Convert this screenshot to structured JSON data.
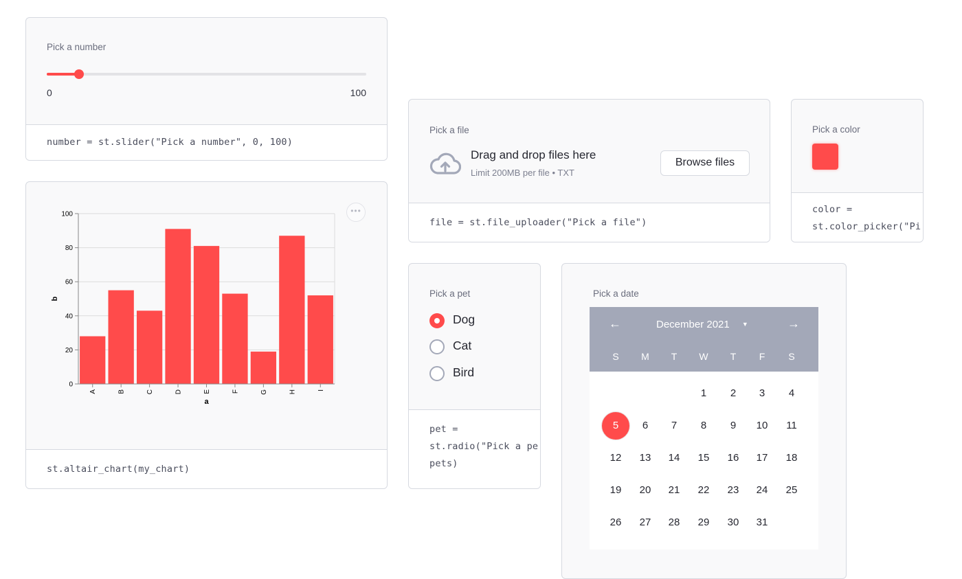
{
  "slider_card": {
    "label": "Pick a number",
    "value": 10,
    "min_label": "0",
    "max_label": "100",
    "code": "number = st.slider(\"Pick a number\", 0, 100)"
  },
  "chart_card": {
    "menu_icon": "more-horizontal-icon",
    "code": "st.altair_chart(my_chart)"
  },
  "chart_data": {
    "type": "bar",
    "categories": [
      "A",
      "B",
      "C",
      "D",
      "E",
      "F",
      "G",
      "H",
      "I"
    ],
    "values": [
      28,
      55,
      43,
      91,
      81,
      53,
      19,
      87,
      52
    ],
    "xlabel": "a",
    "ylabel": "b",
    "ylim": [
      0,
      100
    ],
    "yticks": [
      0,
      20,
      40,
      60,
      80,
      100
    ],
    "grid": true,
    "bar_color": "#ff4b4b"
  },
  "file_card": {
    "label": "Pick a file",
    "icon": "cloud-upload-icon",
    "title": "Drag and drop files here",
    "subtitle": "Limit 200MB per file • TXT",
    "button": "Browse files",
    "code": "file = st.file_uploader(\"Pick a file\")"
  },
  "color_card": {
    "label": "Pick a color",
    "color": "#ff4b4b",
    "code_lines": [
      "color =",
      "st.color_picker(\"Pi"
    ]
  },
  "radio_card": {
    "label": "Pick a pet",
    "options": [
      "Dog",
      "Cat",
      "Bird"
    ],
    "selected": "Dog",
    "code_lines": [
      "pet =",
      "st.radio(\"Pick a pe",
      "pets)"
    ]
  },
  "date_card": {
    "label": "Pick a date",
    "month": "December 2021",
    "prev_icon": "arrow-left-icon",
    "next_icon": "arrow-right-icon",
    "dropdown_icon": "caret-down-icon",
    "weekdays": [
      "S",
      "M",
      "T",
      "W",
      "T",
      "F",
      "S"
    ],
    "weeks": [
      [
        "",
        "",
        "",
        "1",
        "2",
        "3",
        "4"
      ],
      [
        "5",
        "6",
        "7",
        "8",
        "9",
        "10",
        "11"
      ],
      [
        "12",
        "13",
        "14",
        "15",
        "16",
        "17",
        "18"
      ],
      [
        "19",
        "20",
        "21",
        "22",
        "23",
        "24",
        "25"
      ],
      [
        "26",
        "27",
        "28",
        "29",
        "30",
        "31",
        ""
      ]
    ],
    "selected_day": "5",
    "accent": "#ff4b4b",
    "header_color": "#a3a8b8"
  }
}
